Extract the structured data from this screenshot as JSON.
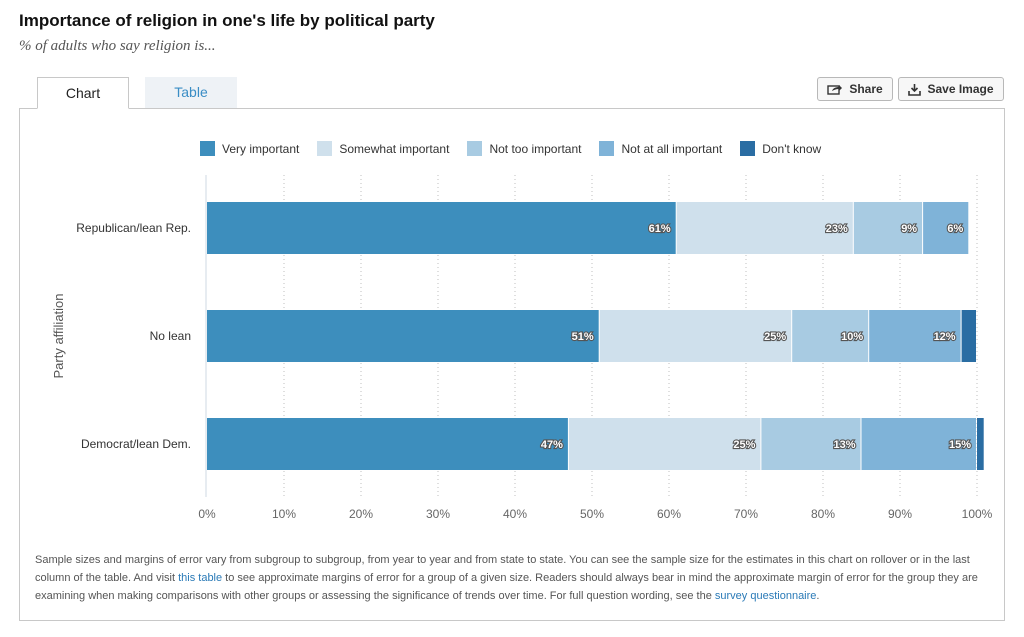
{
  "header": {
    "title": "Importance of religion in one's life by political party",
    "subtitle": "% of adults who say religion is..."
  },
  "tabs": [
    {
      "label": "Chart",
      "active": true
    },
    {
      "label": "Table",
      "active": false
    }
  ],
  "buttons": {
    "share": "Share",
    "save_image": "Save Image"
  },
  "chart_data": {
    "type": "bar",
    "orientation": "horizontal",
    "stacked": true,
    "categories": [
      "Republican/lean Rep.",
      "No lean",
      "Democrat/lean Dem."
    ],
    "series": [
      {
        "name": "Very important",
        "color": "#3d8ebd",
        "values": [
          61,
          51,
          47
        ],
        "labels": [
          "61%",
          "51%",
          "47%"
        ]
      },
      {
        "name": "Somewhat important",
        "color": "#cfe0ec",
        "values": [
          23,
          25,
          25
        ],
        "labels": [
          "23%",
          "25%",
          "25%"
        ]
      },
      {
        "name": "Not too important",
        "color": "#a8cbe2",
        "values": [
          9,
          10,
          13
        ],
        "labels": [
          "9%",
          "10%",
          "13%"
        ]
      },
      {
        "name": "Not at all important",
        "color": "#7fb3d8",
        "values": [
          6,
          12,
          15
        ],
        "labels": [
          "6%",
          "12%",
          "15%"
        ]
      },
      {
        "name": "Don't know",
        "color": "#2a6da3",
        "values": [
          0,
          2,
          1
        ],
        "labels": [
          "",
          "",
          ""
        ]
      }
    ],
    "xlabel": "",
    "ylabel": "Party affiliation",
    "xlim": [
      0,
      100
    ],
    "xticks": [
      "0%",
      "10%",
      "20%",
      "30%",
      "40%",
      "50%",
      "60%",
      "70%",
      "80%",
      "90%",
      "100%"
    ],
    "grid": "vertical dotted",
    "legend": "top"
  },
  "footnote": {
    "part1": "Sample sizes and margins of error vary from subgroup to subgroup, from year to year and from state to state. You can see the sample size for the estimates in this chart on rollover or in the last column of the table. And visit ",
    "link1": "this table",
    "part2": " to see approximate margins of error for a group of a given size. Readers should always bear in mind the approximate margin of error for the group they are examining when making comparisons with other groups or assessing the significance of trends over time. For full question wording, see the ",
    "link2": "survey questionnaire",
    "part3": "."
  }
}
